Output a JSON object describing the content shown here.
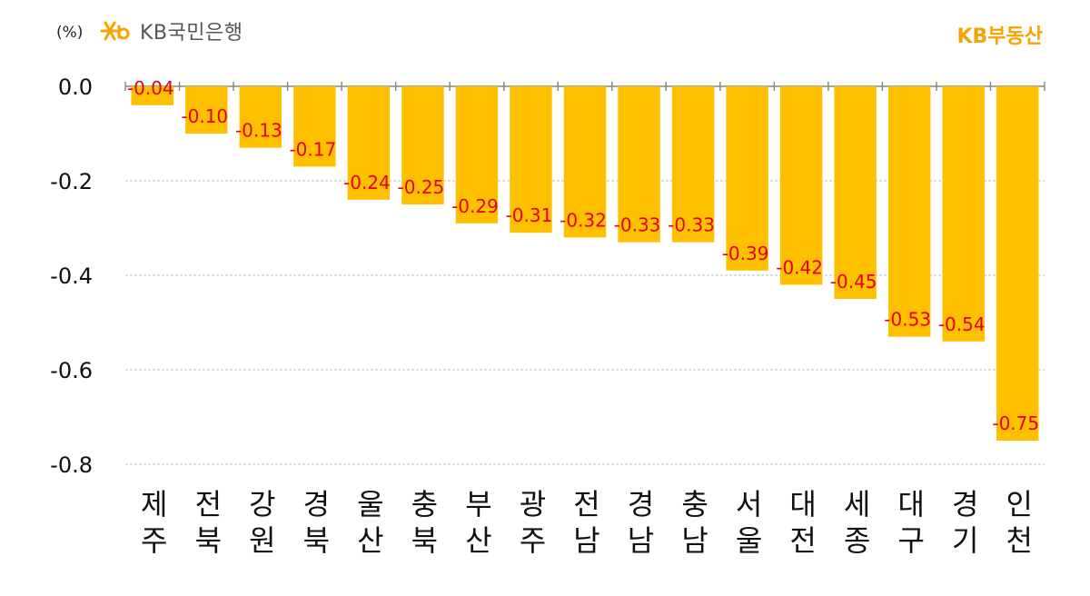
{
  "header": {
    "unit": "(%)",
    "bank_name": "KB국민은행",
    "brand": "KB부동산",
    "logo_icon": "kb-star-logo-icon"
  },
  "colors": {
    "bar": "#ffc000",
    "data_label": "#e60012",
    "axis": "#888888",
    "grid": "#bbbbbb",
    "brand": "#f5a400"
  },
  "chart_data": {
    "type": "bar",
    "categories": [
      "제주",
      "전북",
      "강원",
      "경북",
      "울산",
      "충북",
      "부산",
      "광주",
      "전남",
      "경남",
      "충남",
      "서울",
      "대전",
      "세종",
      "대구",
      "경기",
      "인천"
    ],
    "values": [
      -0.04,
      -0.1,
      -0.13,
      -0.17,
      -0.24,
      -0.25,
      -0.29,
      -0.31,
      -0.32,
      -0.33,
      -0.33,
      -0.39,
      -0.42,
      -0.45,
      -0.53,
      -0.54,
      -0.75
    ],
    "data_labels": [
      "-0.04",
      "-0.10",
      "-0.13",
      "-0.17",
      "-0.24",
      "-0.25",
      "-0.29",
      "-0.31",
      "-0.32",
      "-0.33",
      "-0.33",
      "-0.39",
      "-0.42",
      "-0.45",
      "-0.53",
      "-0.54",
      "-0.75"
    ],
    "yticks": [
      "0.0",
      "-0.2",
      "-0.4",
      "-0.6",
      "-0.8"
    ],
    "ytick_values": [
      0.0,
      -0.2,
      -0.4,
      -0.6,
      -0.8
    ],
    "ylim": [
      -0.8,
      0.0
    ],
    "grid": true,
    "ylabel": "(%)",
    "xlabel": "",
    "title": ""
  }
}
